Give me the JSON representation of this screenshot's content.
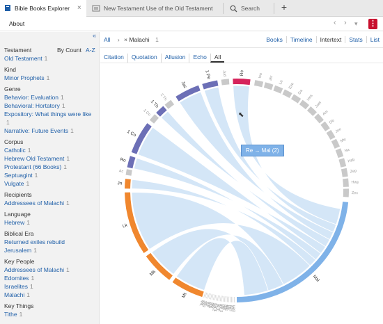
{
  "tabs": {
    "tab1_label": "Bible Books Explorer",
    "tab2_label": "New Testament Use of the Old Testament",
    "tab3_label": "Search",
    "close_glyph": "×",
    "new_tab_glyph": "+"
  },
  "menu": {
    "about_label": "About",
    "back_glyph": "‹",
    "forward_glyph": "›",
    "dropdown_glyph": "▾",
    "more_glyph": "⋮"
  },
  "sidebar": {
    "collapse_glyph": "«",
    "testament_label": "Testament",
    "sort_by_count": "By Count",
    "sort_az": "A-Z",
    "groups": [
      {
        "heading": "",
        "items": [
          {
            "label": "Old Testament",
            "count": "1"
          }
        ]
      },
      {
        "heading": "Kind",
        "items": [
          {
            "label": "Minor Prophets",
            "count": "1"
          }
        ]
      },
      {
        "heading": "Genre",
        "items": [
          {
            "label": "Behavior: Evaluation",
            "count": "1"
          },
          {
            "label": "Behavioral: Hortatory",
            "count": "1"
          },
          {
            "label": "Expository: What things were like",
            "count": ""
          },
          {
            "label": "1",
            "count": ""
          },
          {
            "label": "Narrative: Future Events",
            "count": "1"
          }
        ]
      },
      {
        "heading": "Corpus",
        "items": [
          {
            "label": "Catholic",
            "count": "1"
          },
          {
            "label": "Hebrew Old Testament",
            "count": "1"
          },
          {
            "label": "Protestant (66 Books)",
            "count": "1"
          },
          {
            "label": "Septuagint",
            "count": "1"
          },
          {
            "label": "Vulgate",
            "count": "1"
          }
        ]
      },
      {
        "heading": "Recipients",
        "items": [
          {
            "label": "Addressees of Malachi",
            "count": "1"
          }
        ]
      },
      {
        "heading": "Language",
        "items": [
          {
            "label": "Hebrew",
            "count": "1"
          }
        ]
      },
      {
        "heading": "Biblical Era",
        "items": [
          {
            "label": "Returned exiles rebuild",
            "count": ""
          },
          {
            "label": "Jerusalem",
            "count": "1"
          }
        ]
      },
      {
        "heading": "Key People",
        "items": [
          {
            "label": "Addressees of Malachi",
            "count": "1"
          },
          {
            "label": "Edomites",
            "count": "1"
          },
          {
            "label": "Israelites",
            "count": "1"
          },
          {
            "label": "Malachi",
            "count": "1"
          }
        ]
      },
      {
        "heading": "Key Things",
        "items": [
          {
            "label": "Tithe",
            "count": "1"
          }
        ]
      }
    ]
  },
  "breadcrumb": {
    "all_label": "All",
    "separator": "›",
    "remove_glyph": "×",
    "current_label": "Malachi",
    "current_count": "1"
  },
  "views": [
    "Books",
    "Timeline",
    "Intertext",
    "Stats",
    "List"
  ],
  "active_view": "Intertext",
  "filters": [
    "Citation",
    "Quotation",
    "Allusion",
    "Echo",
    "All"
  ],
  "active_filter": "All",
  "tooltip_text": "Re → Mal (2)",
  "colors": {
    "link": "#1f5fa8",
    "gospels": "#f0872e",
    "epistles": "#6c6fb6",
    "revelation": "#d6245c",
    "malachi": "#7fb2e8",
    "ribbon": "#cfe3f6",
    "inactive_book": "#c9c9c9"
  },
  "chart_data": {
    "type": "chord",
    "focus_book": "Mal",
    "segments": [
      {
        "book": "Mal",
        "label": "Mal",
        "group": "malachi"
      },
      {
        "book": "Zec",
        "label": "Zec",
        "group": "ot"
      },
      {
        "book": "Hag",
        "label": "Hag",
        "group": "ot"
      },
      {
        "book": "Zep",
        "label": "Zep",
        "group": "ot"
      },
      {
        "book": "Hab",
        "label": "Hab",
        "group": "ot"
      },
      {
        "book": "Na",
        "label": "Na",
        "group": "ot"
      },
      {
        "book": "Mic",
        "label": "Mic",
        "group": "ot"
      },
      {
        "book": "Jon",
        "label": "Jon",
        "group": "ot"
      },
      {
        "book": "Ob",
        "label": "Ob",
        "group": "ot"
      },
      {
        "book": "Am",
        "label": "Am",
        "group": "ot"
      },
      {
        "book": "Joel",
        "label": "Joel",
        "group": "ot"
      },
      {
        "book": "Hos",
        "label": "Hos",
        "group": "ot"
      },
      {
        "book": "Da",
        "label": "Da",
        "group": "ot"
      },
      {
        "book": "Eze",
        "label": "Eze",
        "group": "ot"
      },
      {
        "book": "La",
        "label": "La",
        "group": "ot"
      },
      {
        "book": "Jer",
        "label": "Jer",
        "group": "ot"
      },
      {
        "book": "Isa",
        "label": "Isa",
        "group": "ot"
      },
      {
        "book": "Re",
        "label": "Re",
        "group": "revelation"
      },
      {
        "book": "Jud",
        "label": "Jud",
        "group": "epistle_inactive"
      },
      {
        "book": "1 Pe",
        "label": "1 Pe",
        "group": "epistle"
      },
      {
        "book": "Jas",
        "label": "Jas",
        "group": "epistle"
      },
      {
        "book": "2 Th",
        "label": "2 Th",
        "group": "epistle_inactive"
      },
      {
        "book": "1 Th",
        "label": "1 Th",
        "group": "epistle"
      },
      {
        "book": "2 Co",
        "label": "2 Co",
        "group": "epistle_inactive"
      },
      {
        "book": "1 Co",
        "label": "1 Co",
        "group": "epistle"
      },
      {
        "book": "Ro",
        "label": "Ro",
        "group": "epistle"
      },
      {
        "book": "Ac",
        "label": "Ac",
        "group": "inactive"
      },
      {
        "book": "Jn",
        "label": "Jn",
        "group": "gospel"
      },
      {
        "book": "Lk",
        "label": "Lk",
        "group": "gospel"
      },
      {
        "book": "Mk",
        "label": "Mk",
        "group": "gospel"
      },
      {
        "book": "Mt",
        "label": "Mt",
        "group": "gospel"
      },
      {
        "book": "Gen",
        "label": "Gen",
        "group": "ot"
      },
      {
        "book": "Ex",
        "label": "Ex",
        "group": "ot"
      },
      {
        "book": "Lev",
        "label": "Lev",
        "group": "ot"
      },
      {
        "book": "Nu",
        "label": "Nu",
        "group": "ot"
      },
      {
        "book": "Dt",
        "label": "Dt",
        "group": "ot"
      },
      {
        "book": "Jos",
        "label": "Jos",
        "group": "ot"
      },
      {
        "book": "Jdg",
        "label": "Jdg",
        "group": "ot"
      },
      {
        "book": "Ru",
        "label": "Ru",
        "group": "ot"
      },
      {
        "book": "1 Sa",
        "label": "1 Sa",
        "group": "ot"
      },
      {
        "book": "2 Sa",
        "label": "2 Sa",
        "group": "ot"
      },
      {
        "book": "1 Ki",
        "label": "1 Ki",
        "group": "ot"
      },
      {
        "book": "2 Ki",
        "label": "2 Ki",
        "group": "ot"
      },
      {
        "book": "1 Ch",
        "label": "1 Ch",
        "group": "ot"
      },
      {
        "book": "2 Ch",
        "label": "2 Ch",
        "group": "ot"
      },
      {
        "book": "Ezr",
        "label": "Ezr",
        "group": "ot"
      },
      {
        "book": "Ne",
        "label": "Ne",
        "group": "ot"
      },
      {
        "book": "Est",
        "label": "Est",
        "group": "ot"
      },
      {
        "book": "Job",
        "label": "Job",
        "group": "ot"
      },
      {
        "book": "Ps",
        "label": "Ps",
        "group": "ot"
      },
      {
        "book": "Pr",
        "label": "Pr",
        "group": "ot"
      },
      {
        "book": "Ecc",
        "label": "Ecc",
        "group": "ot"
      },
      {
        "book": "SS",
        "label": "SS",
        "group": "ot"
      },
      {
        "book": "Tob",
        "label": "Tob",
        "group": "ot"
      }
    ],
    "links": [
      {
        "source": "Re",
        "target": "Mal",
        "count": 2
      },
      {
        "source": "1 Pe",
        "target": "Mal",
        "count": 1
      },
      {
        "source": "Jas",
        "target": "Mal",
        "count": 1
      },
      {
        "source": "1 Th",
        "target": "Mal",
        "count": 1
      },
      {
        "source": "1 Co",
        "target": "Mal",
        "count": 1
      },
      {
        "source": "Ro",
        "target": "Mal",
        "count": 1
      },
      {
        "source": "Jn",
        "target": "Mal",
        "count": 1
      },
      {
        "source": "Lk",
        "target": "Mal",
        "count": 4
      },
      {
        "source": "Mk",
        "target": "Mal",
        "count": 2
      },
      {
        "source": "Mt",
        "target": "Mal",
        "count": 3
      }
    ]
  }
}
